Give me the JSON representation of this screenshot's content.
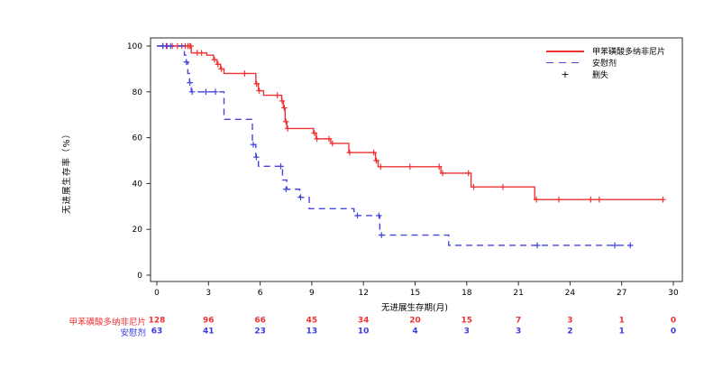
{
  "chart_data": {
    "type": "line",
    "subtype": "kaplan-meier-step",
    "title": "",
    "xlabel": "无进展生存期(月)",
    "ylabel": "无进展生存率（%）",
    "xlim": [
      0,
      30
    ],
    "ylim": [
      0,
      100
    ],
    "xticks": [
      0,
      3,
      6,
      9,
      12,
      15,
      18,
      21,
      24,
      27,
      30
    ],
    "yticks": [
      0,
      20,
      40,
      60,
      80,
      100
    ],
    "grid": false,
    "legend_position": "top-right-inside",
    "legend": [
      {
        "label": "甲苯磺酸多纳非尼片",
        "style": "solid",
        "color": "#ee3333"
      },
      {
        "label": "安慰剂",
        "style": "dashed",
        "color": "#4646dd"
      },
      {
        "label": "删失",
        "style": "marker",
        "marker": "+",
        "color": "#000000"
      }
    ],
    "series": [
      {
        "name": "甲苯磺酸多纳非尼片",
        "color": "#ee3333",
        "dash": false,
        "steps": [
          [
            0,
            100
          ],
          [
            2.0,
            97
          ],
          [
            2.9,
            96
          ],
          [
            3.3,
            94
          ],
          [
            3.5,
            92
          ],
          [
            3.7,
            90
          ],
          [
            3.9,
            88
          ],
          [
            5.75,
            83.5
          ],
          [
            5.9,
            80.5
          ],
          [
            6.2,
            78.5
          ],
          [
            7.25,
            76
          ],
          [
            7.35,
            73
          ],
          [
            7.45,
            67
          ],
          [
            7.55,
            64
          ],
          [
            9.1,
            62
          ],
          [
            9.25,
            59.5
          ],
          [
            10.1,
            57.5
          ],
          [
            11.15,
            53.5
          ],
          [
            12.7,
            50
          ],
          [
            12.85,
            47.3
          ],
          [
            16.5,
            44.5
          ],
          [
            18.25,
            38.5
          ],
          [
            21.95,
            33
          ]
        ],
        "end": 29.45,
        "censors": [
          [
            0.35,
            100
          ],
          [
            0.6,
            100
          ],
          [
            0.9,
            100
          ],
          [
            1.2,
            100
          ],
          [
            1.45,
            100
          ],
          [
            1.65,
            100
          ],
          [
            1.8,
            100
          ],
          [
            1.9,
            100
          ],
          [
            1.97,
            100
          ],
          [
            2.35,
            97
          ],
          [
            2.6,
            97
          ],
          [
            3.35,
            94
          ],
          [
            3.55,
            92
          ],
          [
            3.75,
            90
          ],
          [
            5.1,
            88
          ],
          [
            5.8,
            83.5
          ],
          [
            5.95,
            80.5
          ],
          [
            7.0,
            78.5
          ],
          [
            7.28,
            76
          ],
          [
            7.4,
            73
          ],
          [
            7.5,
            67
          ],
          [
            7.6,
            64
          ],
          [
            9.15,
            62
          ],
          [
            9.3,
            59.5
          ],
          [
            10.0,
            59.5
          ],
          [
            10.2,
            57.5
          ],
          [
            11.2,
            53.5
          ],
          [
            12.6,
            53.5
          ],
          [
            12.75,
            50
          ],
          [
            13.0,
            47.3
          ],
          [
            14.7,
            47.3
          ],
          [
            16.4,
            47.3
          ],
          [
            16.6,
            44.5
          ],
          [
            18.1,
            44.5
          ],
          [
            18.4,
            38.5
          ],
          [
            20.1,
            38.5
          ],
          [
            22.05,
            33
          ],
          [
            23.35,
            33
          ],
          [
            25.2,
            33
          ],
          [
            25.7,
            33
          ],
          [
            29.4,
            33
          ]
        ]
      },
      {
        "name": "安慰剂",
        "color": "#4646dd",
        "dash": true,
        "steps": [
          [
            0,
            100
          ],
          [
            1.6,
            96
          ],
          [
            1.7,
            93
          ],
          [
            1.8,
            88
          ],
          [
            1.9,
            84
          ],
          [
            2.0,
            80
          ],
          [
            3.9,
            68
          ],
          [
            5.55,
            57
          ],
          [
            5.75,
            51.5
          ],
          [
            5.9,
            47.5
          ],
          [
            7.3,
            41.5
          ],
          [
            7.55,
            37.5
          ],
          [
            8.3,
            34
          ],
          [
            8.85,
            29
          ],
          [
            11.45,
            26
          ],
          [
            12.95,
            17.5
          ],
          [
            16.95,
            13
          ]
        ],
        "end": 27.55,
        "censors": [
          [
            0.35,
            100
          ],
          [
            0.55,
            100
          ],
          [
            0.8,
            100
          ],
          [
            1.72,
            93
          ],
          [
            1.92,
            84
          ],
          [
            2.05,
            80
          ],
          [
            2.85,
            80
          ],
          [
            3.4,
            80
          ],
          [
            5.6,
            57
          ],
          [
            5.78,
            51.5
          ],
          [
            7.2,
            47.5
          ],
          [
            7.5,
            37.5
          ],
          [
            8.35,
            34
          ],
          [
            11.65,
            26
          ],
          [
            12.9,
            26
          ],
          [
            13.05,
            17.5
          ],
          [
            22.1,
            13
          ],
          [
            26.6,
            13
          ],
          [
            27.5,
            13
          ]
        ]
      }
    ],
    "risk_table": {
      "times": [
        0,
        3,
        6,
        9,
        12,
        15,
        18,
        21,
        24,
        27,
        30
      ],
      "rows": [
        {
          "label": "甲苯磺酸多纳非尼片",
          "color": "#ee3333",
          "counts": [
            128,
            96,
            66,
            45,
            34,
            20,
            15,
            7,
            3,
            1,
            0
          ]
        },
        {
          "label": "安慰剂",
          "color": "#3b3bdb",
          "counts": [
            63,
            41,
            23,
            13,
            10,
            4,
            3,
            3,
            2,
            1,
            0
          ]
        }
      ]
    }
  }
}
